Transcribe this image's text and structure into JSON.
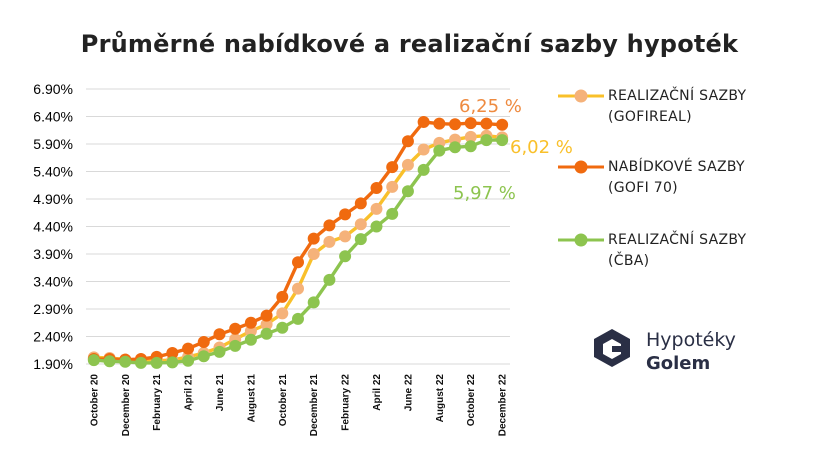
{
  "chart_data": {
    "type": "line",
    "title": "Průměrné nabídkové a realizační sazby hypoték",
    "xlabel": "",
    "ylabel": "",
    "ylim": [
      1.9,
      6.9
    ],
    "yticks": [
      "6.90%",
      "6.40%",
      "5.90%",
      "5.40%",
      "4.90%",
      "4.40%",
      "3.90%",
      "3.40%",
      "2.90%",
      "2.40%",
      "1.90%"
    ],
    "x": [
      "October 20",
      "November 20",
      "December 20",
      "January 21",
      "February 21",
      "March 21",
      "April 21",
      "May 21",
      "June 21",
      "July 21",
      "August 21",
      "September 21",
      "October 21",
      "November 21",
      "December 21",
      "January 22",
      "February 22",
      "March 22",
      "April 22",
      "May 22",
      "June 22",
      "July 22",
      "August 22",
      "September 22",
      "October 22",
      "November 22",
      "December 22"
    ],
    "xtick_labels": [
      "October 20",
      "December 20",
      "February 21",
      "April 21",
      "June 21",
      "August 21",
      "October 21",
      "December 21",
      "February 22",
      "April 22",
      "June 22",
      "August 22",
      "October 22",
      "December 22"
    ],
    "grid": true,
    "legend_position": "right",
    "series": [
      {
        "name": "REALIZAČNÍ SAZBY (GOFIREAL)",
        "legend_lines": [
          "REALIZAČNÍ SAZBY",
          "(GOFIREAL)"
        ],
        "line_color": "#F9C02A",
        "marker_color": "#F5B27A",
        "values": [
          2.02,
          2.01,
          1.98,
          1.96,
          1.96,
          1.97,
          2.03,
          2.1,
          2.2,
          2.35,
          2.5,
          2.62,
          2.82,
          3.27,
          3.9,
          4.12,
          4.22,
          4.44,
          4.72,
          5.12,
          5.52,
          5.8,
          5.92,
          5.98,
          6.03,
          6.05,
          6.02
        ],
        "end_label": "6,02 %",
        "end_label_color": "#F9C02A"
      },
      {
        "name": "NABÍDKOVÉ SAZBY (GOFI 70)",
        "legend_lines": [
          "NABÍDKOVÉ SAZBY",
          "(GOFI 70)"
        ],
        "line_color": "#F06A0F",
        "marker_color": "#F06A0F",
        "values": [
          1.99,
          1.99,
          1.98,
          1.99,
          2.03,
          2.1,
          2.18,
          2.3,
          2.44,
          2.54,
          2.65,
          2.78,
          3.12,
          3.75,
          4.18,
          4.42,
          4.62,
          4.82,
          5.1,
          5.48,
          5.95,
          6.3,
          6.27,
          6.26,
          6.28,
          6.27,
          6.25
        ],
        "end_label": "6,25 %",
        "end_label_color": "#EE8A3F"
      },
      {
        "name": "REALIZAČNÍ SAZBY (ČBA)",
        "legend_lines": [
          "REALIZAČNÍ SAZBY",
          "(ČBA)"
        ],
        "line_color": "#8DC44F",
        "marker_color": "#8DC44F",
        "values": [
          1.97,
          1.95,
          1.94,
          1.92,
          1.92,
          1.93,
          1.96,
          2.04,
          2.12,
          2.23,
          2.34,
          2.45,
          2.56,
          2.72,
          3.02,
          3.43,
          3.86,
          4.17,
          4.4,
          4.63,
          5.04,
          5.43,
          5.78,
          5.84,
          5.86,
          5.97,
          5.97
        ],
        "end_label": "5,97 %",
        "end_label_color": "#8DC44F"
      }
    ]
  },
  "logo": {
    "name": "Hypotéky Golem",
    "word1": "Hypotéky",
    "word2": "Golem"
  }
}
